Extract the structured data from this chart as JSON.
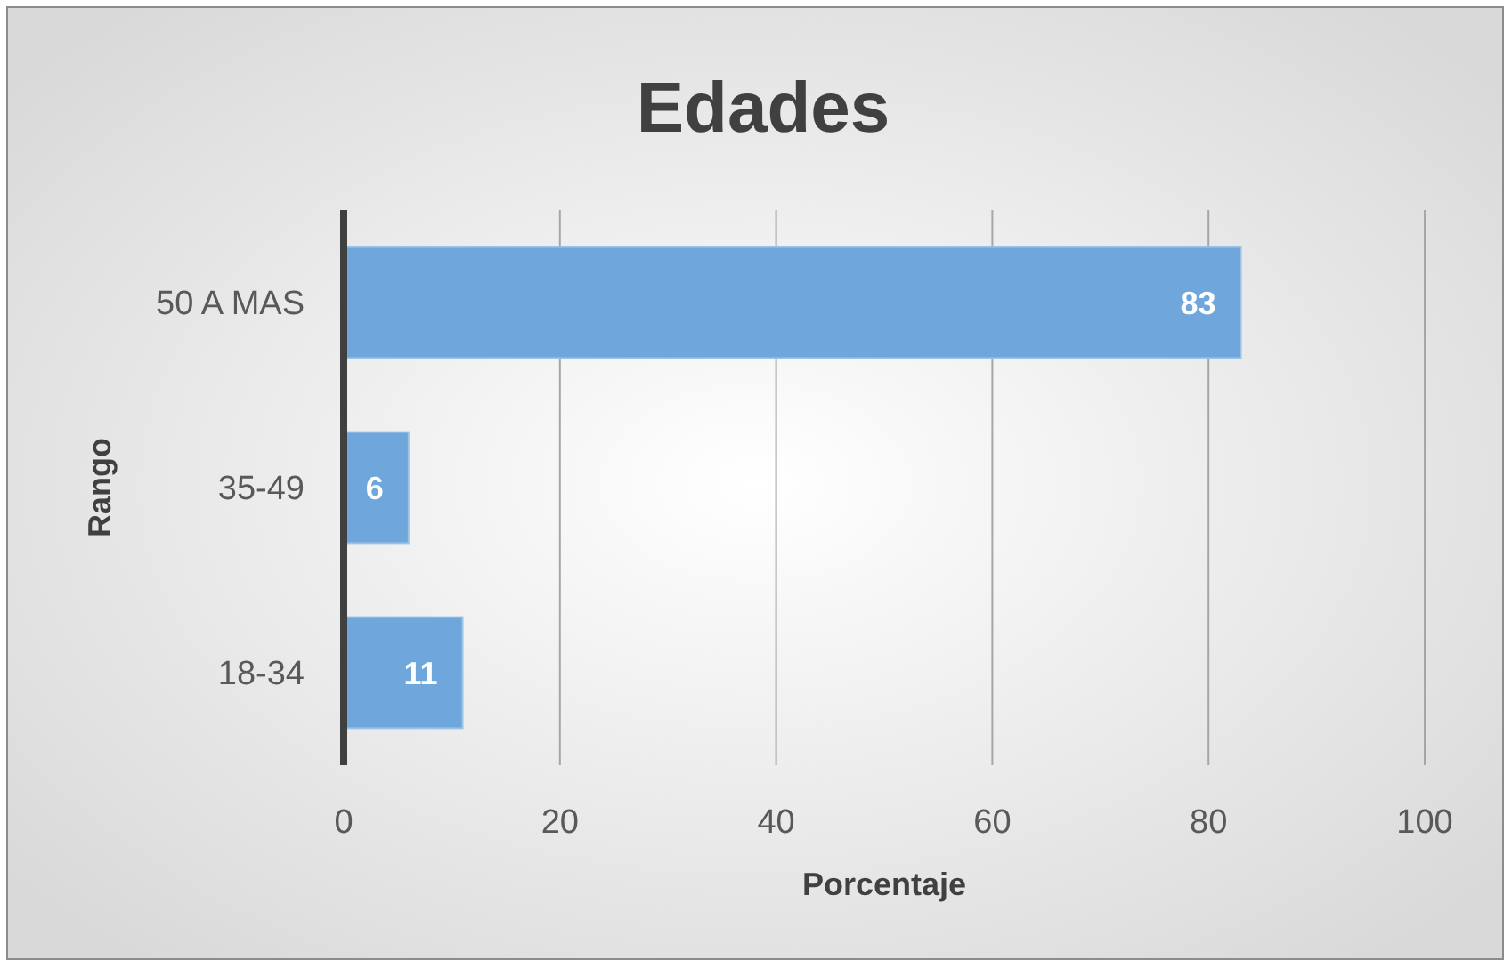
{
  "chart_data": {
    "type": "bar",
    "orientation": "horizontal",
    "title": "Edades",
    "xlabel": "Porcentaje",
    "ylabel": "Rango",
    "categories": [
      "50 A MAS",
      "35-49",
      "18-34"
    ],
    "values": [
      83,
      6,
      11
    ],
    "color": "#6fa6db",
    "xlim": [
      0,
      100
    ],
    "xticks": [
      0,
      20,
      40,
      60,
      80,
      100
    ],
    "grid": "x",
    "data_labels": true
  }
}
